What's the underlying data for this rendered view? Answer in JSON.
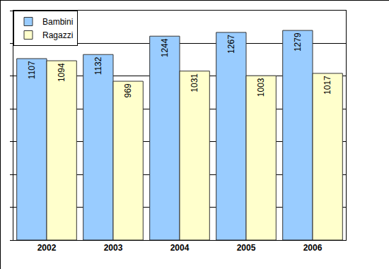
{
  "chart_data": {
    "type": "bar",
    "categories": [
      "2002",
      "2003",
      "2004",
      "2005",
      "2006"
    ],
    "series": [
      {
        "name": "Bambini",
        "color": "#99ccff",
        "values": [
          1107,
          1132,
          1244,
          1267,
          1279
        ]
      },
      {
        "name": "Ragazzi",
        "color": "#ffffcc",
        "values": [
          1094,
          969,
          1031,
          1003,
          1017
        ]
      }
    ],
    "ylim": [
      0,
      1400
    ],
    "yticks": [
      0,
      200,
      400,
      600,
      800,
      1000,
      1200,
      1400
    ],
    "grid": true,
    "legend": "top-left",
    "data_labels": true,
    "tick_labels": "x"
  }
}
